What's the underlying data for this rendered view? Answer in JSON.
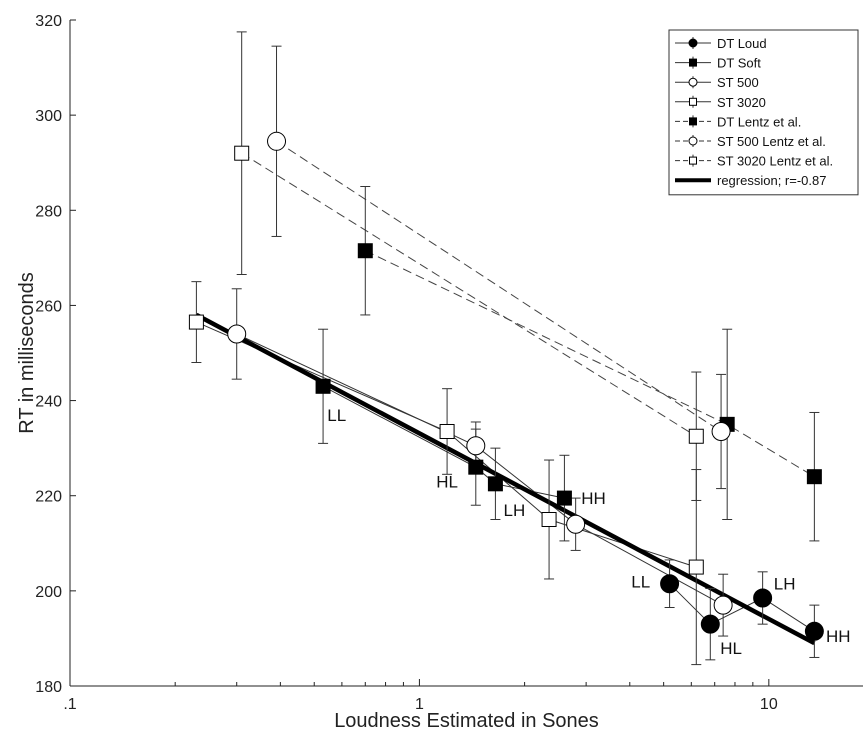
{
  "chart_data": {
    "type": "scatter",
    "xlabel": "Loudness Estimated in Sones",
    "ylabel": "RT in milliseconds",
    "xscale": "log",
    "xlim": [
      0.1,
      18.6
    ],
    "ylim": [
      180,
      320
    ],
    "xticks": [
      {
        "v": 0.1,
        "label": ".1"
      },
      {
        "v": 1,
        "label": "1"
      },
      {
        "v": 10,
        "label": "10"
      }
    ],
    "yticks": [
      180,
      200,
      220,
      240,
      260,
      280,
      300,
      320
    ],
    "legend_position": "top-right",
    "series": [
      {
        "name": "DT Loud",
        "marker": "circle",
        "fill": "#000000",
        "size": 18,
        "line": "solid",
        "points": [
          {
            "x": 5.2,
            "y": 201.5,
            "e": 5
          },
          {
            "x": 6.8,
            "y": 193,
            "e": 7.5
          },
          {
            "x": 9.6,
            "y": 198.5,
            "e": 5.5
          },
          {
            "x": 13.5,
            "y": 191.5,
            "e": 5.5
          }
        ]
      },
      {
        "name": "DT Soft",
        "marker": "square",
        "fill": "#000000",
        "size": 14,
        "line": "solid",
        "points": [
          {
            "x": 0.53,
            "y": 243,
            "e": 12
          },
          {
            "x": 1.45,
            "y": 226,
            "e": 8
          },
          {
            "x": 1.65,
            "y": 222.5,
            "e": 7.5
          },
          {
            "x": 2.6,
            "y": 219.5,
            "e": 9
          }
        ]
      },
      {
        "name": "ST 500",
        "marker": "circle",
        "fill": "#ffffff",
        "size": 18,
        "line": "solid",
        "points": [
          {
            "x": 0.3,
            "y": 254,
            "e": 9.5
          },
          {
            "x": 1.45,
            "y": 230.5,
            "e": 5
          },
          {
            "x": 2.8,
            "y": 214,
            "e": 5.5
          },
          {
            "x": 7.4,
            "y": 197,
            "e": 6.5
          }
        ]
      },
      {
        "name": "ST 3020",
        "marker": "square",
        "fill": "#ffffff",
        "size": 14,
        "line": "solid",
        "points": [
          {
            "x": 0.23,
            "y": 256.5,
            "e": 8.5
          },
          {
            "x": 1.2,
            "y": 233.5,
            "e": 9
          },
          {
            "x": 2.35,
            "y": 215,
            "e": 12.5
          },
          {
            "x": 6.2,
            "y": 205,
            "e": 20.5
          }
        ]
      },
      {
        "name": "DT Lentz et al.",
        "marker": "square",
        "fill": "#000000",
        "size": 14,
        "line": "dashed",
        "points": [
          {
            "x": 0.7,
            "y": 271.5,
            "e": 13.5
          },
          {
            "x": 7.6,
            "y": 235,
            "e": 20
          },
          {
            "x": 13.5,
            "y": 224,
            "e": 13.5
          }
        ]
      },
      {
        "name": "ST 500 Lentz et al.",
        "marker": "circle",
        "fill": "#ffffff",
        "size": 18,
        "line": "dashed",
        "points": [
          {
            "x": 0.39,
            "y": 294.5,
            "e": 20
          },
          {
            "x": 7.3,
            "y": 233.5,
            "e": 12
          }
        ]
      },
      {
        "name": "ST 3020 Lentz et al.",
        "marker": "square",
        "fill": "#ffffff",
        "size": 14,
        "line": "dashed",
        "points": [
          {
            "x": 0.31,
            "y": 292,
            "e": 25.5
          },
          {
            "x": 6.2,
            "y": 232.5,
            "e": 13.5
          }
        ]
      },
      {
        "name": "regression; r=-0.87",
        "line": "thick",
        "points": [
          {
            "x": 0.23,
            "y": 258
          },
          {
            "x": 13.5,
            "y": 189
          }
        ]
      }
    ],
    "annotations": [
      {
        "text": "LL",
        "x": 0.58,
        "y": 237
      },
      {
        "text": "HL",
        "x": 1.2,
        "y": 223
      },
      {
        "text": "LH",
        "x": 1.87,
        "y": 217
      },
      {
        "text": "HH",
        "x": 3.15,
        "y": 219.5
      },
      {
        "text": "LL",
        "x": 4.3,
        "y": 202
      },
      {
        "text": "HL",
        "x": 7.8,
        "y": 188
      },
      {
        "text": "LH",
        "x": 11.1,
        "y": 201.5
      },
      {
        "text": "HH",
        "x": 15.8,
        "y": 190.5
      }
    ]
  }
}
